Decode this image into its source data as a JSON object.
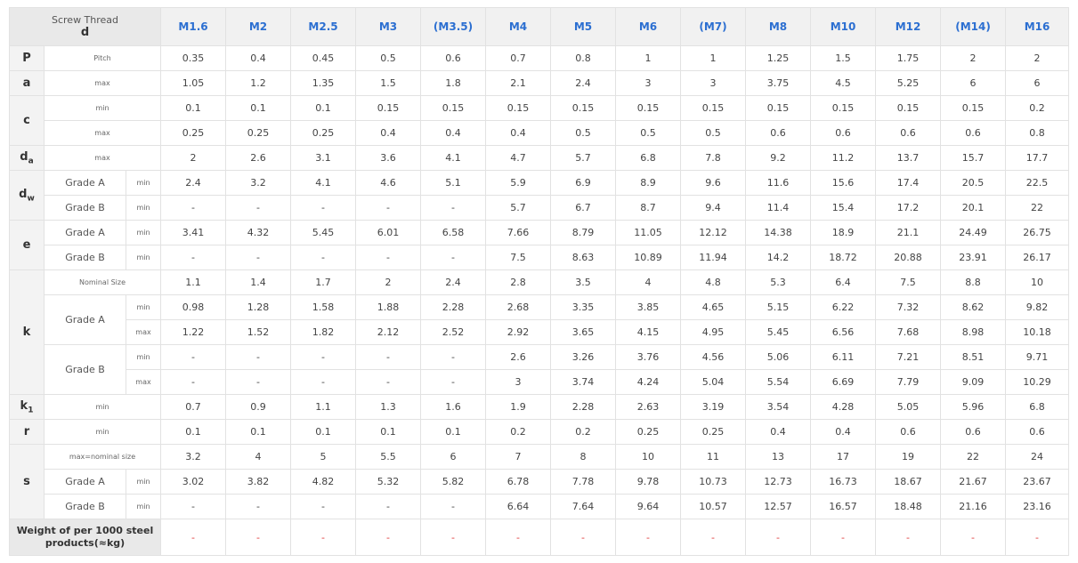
{
  "header": {
    "thread_label": "Screw Thread",
    "d_label": "d",
    "sizes": [
      "M1.6",
      "M2",
      "M2.5",
      "M3",
      "(M3.5)",
      "M4",
      "M5",
      "M6",
      "(M7)",
      "M8",
      "M10",
      "M12",
      "(M14)",
      "M16"
    ]
  },
  "rows": [
    {
      "kind": "sym2",
      "sym": "P",
      "label": "Pitch",
      "values": [
        "0.35",
        "0.4",
        "0.45",
        "0.5",
        "0.6",
        "0.7",
        "0.8",
        "1",
        "1",
        "1.25",
        "1.5",
        "1.75",
        "2",
        "2"
      ]
    },
    {
      "kind": "sym2",
      "sym": "a",
      "label": "max",
      "values": [
        "1.05",
        "1.2",
        "1.35",
        "1.5",
        "1.8",
        "2.1",
        "2.4",
        "3",
        "3",
        "3.75",
        "4.5",
        "5.25",
        "6",
        "6"
      ]
    },
    {
      "kind": "sym2",
      "sym": "c",
      "symspan": 2,
      "label": "min",
      "values": [
        "0.1",
        "0.1",
        "0.1",
        "0.15",
        "0.15",
        "0.15",
        "0.15",
        "0.15",
        "0.15",
        "0.15",
        "0.15",
        "0.15",
        "0.15",
        "0.2"
      ]
    },
    {
      "kind": "plain2",
      "label": "max",
      "values": [
        "0.25",
        "0.25",
        "0.25",
        "0.4",
        "0.4",
        "0.4",
        "0.5",
        "0.5",
        "0.5",
        "0.6",
        "0.6",
        "0.6",
        "0.6",
        "0.8"
      ]
    },
    {
      "kind": "sym2",
      "sym": "d",
      "sub": "a",
      "label": "max",
      "values": [
        "2",
        "2.6",
        "3.1",
        "3.6",
        "4.1",
        "4.7",
        "5.7",
        "6.8",
        "7.8",
        "9.2",
        "11.2",
        "13.7",
        "15.7",
        "17.7"
      ]
    },
    {
      "kind": "sym3",
      "sym": "d",
      "sub": "w",
      "symspan": 2,
      "grade": "Grade A",
      "qual": "min",
      "values": [
        "2.4",
        "3.2",
        "4.1",
        "4.6",
        "5.1",
        "5.9",
        "6.9",
        "8.9",
        "9.6",
        "11.6",
        "15.6",
        "17.4",
        "20.5",
        "22.5"
      ]
    },
    {
      "kind": "plain3",
      "grade": "Grade B",
      "qual": "min",
      "values": [
        "-",
        "-",
        "-",
        "-",
        "-",
        "5.7",
        "6.7",
        "8.7",
        "9.4",
        "11.4",
        "15.4",
        "17.2",
        "20.1",
        "22"
      ]
    },
    {
      "kind": "sym3",
      "sym": "e",
      "symspan": 2,
      "grade": "Grade A",
      "qual": "min",
      "values": [
        "3.41",
        "4.32",
        "5.45",
        "6.01",
        "6.58",
        "7.66",
        "8.79",
        "11.05",
        "12.12",
        "14.38",
        "18.9",
        "21.1",
        "24.49",
        "26.75"
      ]
    },
    {
      "kind": "plain3",
      "grade": "Grade B",
      "qual": "min",
      "values": [
        "-",
        "-",
        "-",
        "-",
        "-",
        "7.5",
        "8.63",
        "10.89",
        "11.94",
        "14.2",
        "18.72",
        "20.88",
        "23.91",
        "26.17"
      ]
    },
    {
      "kind": "sym2",
      "sym": "k",
      "symspan": 5,
      "label": "Nominal Size",
      "values": [
        "1.1",
        "1.4",
        "1.7",
        "2",
        "2.4",
        "2.8",
        "3.5",
        "4",
        "4.8",
        "5.3",
        "6.4",
        "7.5",
        "8.8",
        "10"
      ]
    },
    {
      "kind": "grade3",
      "grade": "Grade A",
      "gradespan": 2,
      "qual": "min",
      "values": [
        "0.98",
        "1.28",
        "1.58",
        "1.88",
        "2.28",
        "2.68",
        "3.35",
        "3.85",
        "4.65",
        "5.15",
        "6.22",
        "7.32",
        "8.62",
        "9.82"
      ]
    },
    {
      "kind": "qual3",
      "qual": "max",
      "values": [
        "1.22",
        "1.52",
        "1.82",
        "2.12",
        "2.52",
        "2.92",
        "3.65",
        "4.15",
        "4.95",
        "5.45",
        "6.56",
        "7.68",
        "8.98",
        "10.18"
      ]
    },
    {
      "kind": "grade3",
      "grade": "Grade B",
      "gradespan": 2,
      "qual": "min",
      "values": [
        "-",
        "-",
        "-",
        "-",
        "-",
        "2.6",
        "3.26",
        "3.76",
        "4.56",
        "5.06",
        "6.11",
        "7.21",
        "8.51",
        "9.71"
      ]
    },
    {
      "kind": "qual3",
      "qual": "max",
      "values": [
        "-",
        "-",
        "-",
        "-",
        "-",
        "3",
        "3.74",
        "4.24",
        "5.04",
        "5.54",
        "6.69",
        "7.79",
        "9.09",
        "10.29"
      ]
    },
    {
      "kind": "sym2",
      "sym": "k",
      "sub": "1",
      "label": "min",
      "values": [
        "0.7",
        "0.9",
        "1.1",
        "1.3",
        "1.6",
        "1.9",
        "2.28",
        "2.63",
        "3.19",
        "3.54",
        "4.28",
        "5.05",
        "5.96",
        "6.8"
      ]
    },
    {
      "kind": "sym2",
      "sym": "r",
      "label": "min",
      "values": [
        "0.1",
        "0.1",
        "0.1",
        "0.1",
        "0.1",
        "0.2",
        "0.2",
        "0.25",
        "0.25",
        "0.4",
        "0.4",
        "0.6",
        "0.6",
        "0.6"
      ]
    },
    {
      "kind": "sym2",
      "sym": "s",
      "symspan": 3,
      "label": "max=nominal size",
      "values": [
        "3.2",
        "4",
        "5",
        "5.5",
        "6",
        "7",
        "8",
        "10",
        "11",
        "13",
        "17",
        "19",
        "22",
        "24"
      ]
    },
    {
      "kind": "plain3",
      "grade": "Grade A",
      "qual": "min",
      "values": [
        "3.02",
        "3.82",
        "4.82",
        "5.32",
        "5.82",
        "6.78",
        "7.78",
        "9.78",
        "10.73",
        "12.73",
        "16.73",
        "18.67",
        "21.67",
        "23.67"
      ]
    },
    {
      "kind": "plain3",
      "grade": "Grade B",
      "qual": "min",
      "values": [
        "-",
        "-",
        "-",
        "-",
        "-",
        "6.64",
        "7.64",
        "9.64",
        "10.57",
        "12.57",
        "16.57",
        "18.48",
        "21.16",
        "23.16"
      ]
    }
  ],
  "weight_row": {
    "label": "Weight of per 1000 steel products(≈kg)",
    "values": [
      "-",
      "-",
      "-",
      "-",
      "-",
      "-",
      "-",
      "-",
      "-",
      "-",
      "-",
      "-",
      "-",
      "-"
    ]
  }
}
